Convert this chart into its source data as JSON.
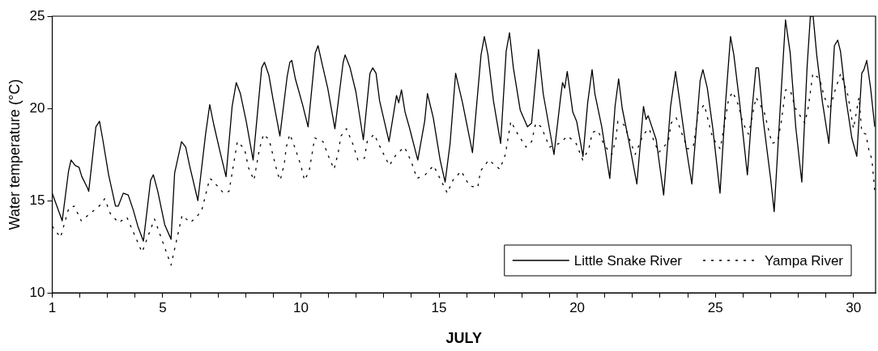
{
  "chart_data": {
    "type": "line",
    "xlabel": "JULY",
    "ylabel": "Water temperature (°C)",
    "xlim": [
      1,
      30.8
    ],
    "xticks": [
      1,
      {
        "value": 2,
        "label": null
      },
      {
        "value": 3,
        "label": null
      },
      {
        "value": 4,
        "label": null
      },
      5,
      {
        "value": 6,
        "label": null
      },
      {
        "value": 7,
        "label": null
      },
      {
        "value": 8,
        "label": null
      },
      {
        "value": 9,
        "label": null
      },
      10,
      {
        "value": 11,
        "label": null
      },
      {
        "value": 12,
        "label": null
      },
      {
        "value": 13,
        "label": null
      },
      {
        "value": 14,
        "label": null
      },
      15,
      {
        "value": 16,
        "label": null
      },
      {
        "value": 17,
        "label": null
      },
      {
        "value": 18,
        "label": null
      },
      {
        "value": 19,
        "label": null
      },
      20,
      {
        "value": 21,
        "label": null
      },
      {
        "value": 22,
        "label": null
      },
      {
        "value": 23,
        "label": null
      },
      {
        "value": 24,
        "label": null
      },
      25,
      {
        "value": 26,
        "label": null
      },
      {
        "value": 27,
        "label": null
      },
      {
        "value": 28,
        "label": null
      },
      {
        "value": 29,
        "label": null
      },
      30
    ],
    "ylim": [
      10,
      25
    ],
    "yticks": [
      10,
      15,
      20,
      25
    ],
    "grid": false,
    "legend": "bottom right",
    "marker": "none",
    "series": [
      {
        "name": "Little Snake River",
        "color": "#000000",
        "line_style": "solid",
        "x": [
          1.0,
          1.36,
          1.59,
          1.68,
          1.83,
          1.97,
          2.07,
          2.27,
          2.32,
          2.58,
          2.71,
          2.83,
          3.04,
          3.29,
          3.39,
          3.57,
          3.75,
          3.93,
          4.1,
          4.3,
          4.56,
          4.66,
          4.82,
          5.07,
          5.3,
          5.43,
          5.68,
          5.83,
          5.97,
          6.27,
          6.55,
          6.7,
          6.85,
          7.08,
          7.29,
          7.51,
          7.66,
          7.81,
          8.02,
          8.27,
          8.58,
          8.68,
          8.84,
          8.99,
          9.24,
          9.5,
          9.6,
          9.67,
          9.8,
          10.06,
          10.26,
          10.52,
          10.62,
          10.77,
          10.97,
          11.23,
          11.53,
          11.6,
          11.78,
          11.99,
          12.26,
          12.5,
          12.6,
          12.72,
          12.85,
          13.19,
          13.46,
          13.54,
          13.64,
          13.77,
          13.92,
          14.23,
          14.48,
          14.58,
          14.79,
          15.04,
          15.22,
          15.4,
          15.6,
          15.85,
          16.21,
          16.52,
          16.64,
          16.77,
          16.97,
          17.23,
          17.43,
          17.55,
          17.69,
          17.94,
          18.2,
          18.35,
          18.6,
          18.77,
          19.16,
          19.4,
          19.47,
          19.55,
          19.64,
          19.84,
          19.98,
          20.21,
          20.38,
          20.54,
          20.64,
          20.89,
          21.18,
          21.37,
          21.5,
          21.63,
          21.86,
          22.16,
          22.4,
          22.49,
          22.57,
          22.86,
          23.13,
          23.38,
          23.56,
          23.71,
          23.94,
          24.15,
          24.45,
          24.55,
          24.71,
          24.91,
          25.17,
          25.37,
          25.55,
          25.67,
          25.88,
          26.16,
          26.34,
          26.47,
          26.56,
          26.74,
          27.0,
          27.13,
          27.32,
          27.54,
          27.71,
          27.91,
          28.13,
          28.32,
          28.44,
          28.54,
          28.67,
          28.88,
          29.11,
          29.31,
          29.43,
          29.53,
          29.73,
          29.94,
          30.12,
          30.3,
          30.38,
          30.48,
          30.62,
          30.77
        ],
        "values": [
          15.4,
          13.9,
          16.6,
          17.2,
          16.9,
          16.8,
          16.3,
          15.7,
          15.5,
          19.0,
          19.3,
          18.3,
          16.4,
          14.7,
          14.7,
          15.4,
          15.3,
          14.5,
          13.6,
          12.8,
          16.1,
          16.4,
          15.5,
          13.7,
          12.9,
          16.5,
          18.2,
          17.9,
          16.9,
          15.0,
          18.6,
          20.2,
          19.1,
          17.6,
          16.3,
          20.1,
          21.4,
          20.8,
          19.3,
          17.2,
          22.2,
          22.5,
          21.8,
          20.5,
          18.5,
          21.7,
          22.5,
          22.6,
          21.6,
          20.2,
          19.0,
          23.0,
          23.4,
          22.4,
          21.1,
          18.9,
          22.5,
          22.9,
          22.2,
          20.9,
          18.3,
          21.9,
          22.2,
          21.9,
          20.4,
          18.2,
          20.7,
          20.3,
          21.0,
          19.8,
          19.0,
          17.2,
          19.3,
          20.8,
          19.5,
          17.2,
          16.0,
          18.1,
          21.9,
          20.3,
          17.6,
          22.9,
          23.9,
          22.9,
          20.4,
          18.1,
          23.1,
          24.1,
          22.2,
          19.9,
          19.0,
          19.2,
          23.2,
          20.8,
          17.5,
          20.6,
          21.4,
          21.1,
          22.0,
          19.8,
          19.3,
          17.4,
          20.3,
          22.1,
          20.8,
          19.0,
          16.2,
          20.1,
          21.6,
          20.0,
          18.3,
          15.9,
          20.1,
          19.4,
          19.6,
          18.3,
          15.3,
          20.1,
          22.0,
          20.4,
          17.9,
          15.9,
          21.5,
          22.1,
          21.1,
          18.9,
          15.4,
          20.3,
          23.9,
          22.9,
          20.3,
          16.4,
          20.1,
          22.2,
          22.2,
          19.3,
          16.2,
          14.4,
          19.3,
          24.8,
          23.0,
          19.0,
          16.0,
          22.2,
          25.0,
          25.0,
          22.9,
          20.3,
          18.1,
          23.4,
          23.7,
          23.1,
          20.5,
          18.4,
          17.4,
          21.9,
          22.1,
          22.6,
          21.1,
          19.0
        ]
      },
      {
        "name": "Yampa River",
        "color": "#000000",
        "line_style": "dashed",
        "x": [
          1.0,
          1.3,
          1.6,
          1.8,
          2.05,
          2.7,
          2.9,
          3.1,
          3.4,
          3.7,
          4.25,
          4.7,
          5.3,
          5.7,
          6.0,
          6.4,
          6.7,
          6.8,
          7.2,
          7.4,
          7.6,
          7.7,
          7.96,
          8.1,
          8.3,
          8.5,
          8.65,
          8.85,
          9.15,
          9.25,
          9.4,
          9.47,
          9.6,
          9.8,
          10.0,
          10.13,
          10.3,
          10.4,
          10.5,
          10.8,
          11.0,
          11.2,
          11.35,
          11.45,
          11.65,
          11.9,
          12.06,
          12.3,
          12.4,
          12.65,
          12.9,
          13.2,
          13.45,
          13.75,
          14.0,
          14.2,
          14.5,
          14.8,
          15.3,
          15.5,
          15.8,
          16.1,
          16.4,
          16.5,
          16.8,
          17.2,
          17.4,
          17.5,
          17.6,
          17.85,
          18.15,
          18.35,
          18.5,
          18.7,
          19.0,
          19.35,
          19.66,
          19.96,
          20.2,
          20.42,
          20.55,
          20.75,
          20.98,
          21.25,
          21.4,
          21.47,
          21.7,
          21.9,
          22.1,
          22.4,
          22.6,
          22.95,
          23.3,
          23.4,
          23.58,
          23.8,
          24.0,
          24.2,
          24.3,
          24.38,
          24.6,
          24.75,
          24.9,
          25.18,
          25.38,
          25.48,
          25.63,
          25.83,
          26.0,
          26.2,
          26.33,
          26.47,
          26.77,
          27.05,
          27.25,
          27.38,
          27.54,
          27.71,
          27.9,
          28.24,
          28.37,
          28.53,
          28.78,
          28.93,
          29.13,
          29.36,
          29.54,
          29.8,
          30.0,
          30.2,
          30.3,
          30.45,
          30.55,
          30.67,
          30.77
        ],
        "values": [
          13.6,
          13.0,
          14.6,
          14.7,
          13.9,
          14.7,
          15.1,
          14.3,
          13.8,
          14.1,
          12.2,
          14.0,
          11.5,
          14.2,
          13.8,
          14.4,
          16.2,
          16.1,
          15.4,
          15.5,
          17.3,
          18.2,
          17.8,
          16.8,
          16.1,
          17.8,
          18.6,
          18.3,
          16.5,
          16.1,
          17.0,
          17.9,
          18.6,
          17.8,
          16.9,
          16.1,
          16.6,
          17.5,
          18.4,
          18.2,
          17.4,
          16.7,
          17.6,
          18.5,
          18.9,
          18.0,
          17.2,
          17.3,
          18.2,
          18.6,
          17.8,
          16.9,
          17.5,
          17.9,
          17.1,
          16.2,
          16.4,
          16.9,
          15.4,
          16.1,
          16.6,
          15.8,
          15.7,
          16.6,
          17.2,
          16.7,
          17.5,
          18.4,
          19.3,
          18.6,
          17.9,
          18.2,
          19.2,
          19.0,
          17.9,
          18.1,
          18.5,
          18.1,
          17.2,
          17.8,
          18.7,
          18.8,
          18.0,
          17.5,
          18.3,
          19.3,
          19.1,
          18.3,
          17.5,
          18.6,
          18.9,
          17.6,
          18.2,
          19.2,
          19.5,
          18.6,
          17.8,
          17.9,
          18.9,
          19.8,
          20.2,
          19.3,
          18.4,
          17.8,
          19.6,
          20.5,
          20.9,
          20.2,
          19.2,
          18.6,
          19.5,
          20.6,
          19.8,
          18.1,
          18.2,
          19.2,
          21.0,
          21.0,
          20.0,
          19.2,
          20.1,
          21.9,
          21.6,
          20.7,
          19.9,
          21.1,
          21.9,
          20.7,
          18.9,
          20.6,
          18.7,
          18.6,
          17.8,
          17.2,
          15.5
        ]
      }
    ]
  }
}
